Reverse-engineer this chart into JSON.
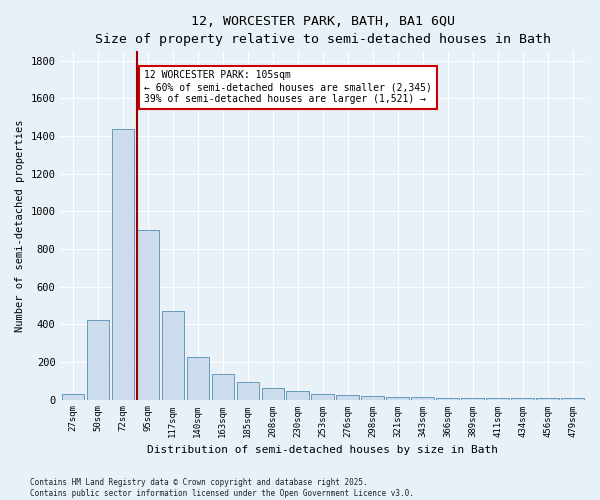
{
  "title": "12, WORCESTER PARK, BATH, BA1 6QU",
  "subtitle": "Size of property relative to semi-detached houses in Bath",
  "xlabel": "Distribution of semi-detached houses by size in Bath",
  "ylabel": "Number of semi-detached properties",
  "bar_color": "#ccdcec",
  "bar_edge_color": "#6699bb",
  "categories": [
    "27sqm",
    "50sqm",
    "72sqm",
    "95sqm",
    "117sqm",
    "140sqm",
    "163sqm",
    "185sqm",
    "208sqm",
    "230sqm",
    "253sqm",
    "276sqm",
    "298sqm",
    "321sqm",
    "343sqm",
    "366sqm",
    "389sqm",
    "411sqm",
    "434sqm",
    "456sqm",
    "479sqm"
  ],
  "values": [
    28,
    425,
    1440,
    900,
    470,
    225,
    135,
    95,
    60,
    45,
    30,
    25,
    18,
    15,
    12,
    10,
    10,
    10,
    8,
    8,
    8
  ],
  "vline_index": 3,
  "vline_color": "#990000",
  "annotation_title": "12 WORCESTER PARK: 105sqm",
  "annotation_line1": "← 60% of semi-detached houses are smaller (2,345)",
  "annotation_line2": "39% of semi-detached houses are larger (1,521) →",
  "annotation_box_facecolor": "#ffffff",
  "annotation_box_edgecolor": "#cc0000",
  "footer_line1": "Contains HM Land Registry data © Crown copyright and database right 2025.",
  "footer_line2": "Contains public sector information licensed under the Open Government Licence v3.0.",
  "ylim": [
    0,
    1850
  ],
  "yticks": [
    0,
    200,
    400,
    600,
    800,
    1000,
    1200,
    1400,
    1600,
    1800
  ],
  "background_color": "#e8f0f8",
  "grid_color": "#ffffff",
  "fig_width": 6.0,
  "fig_height": 5.0,
  "dpi": 100
}
